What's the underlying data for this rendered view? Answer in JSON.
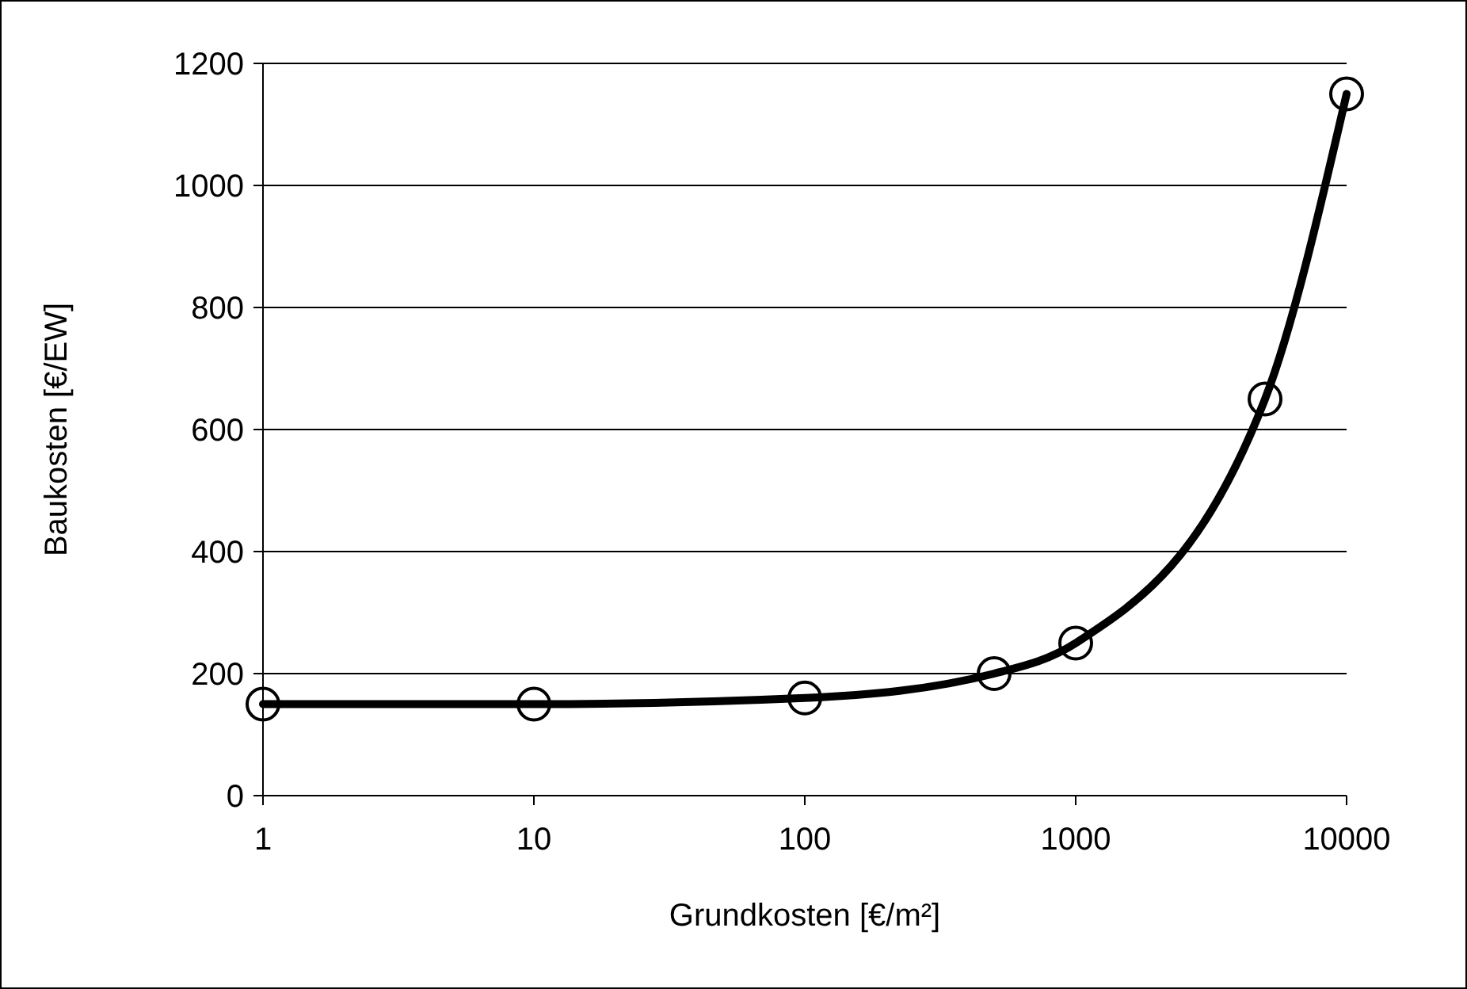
{
  "chart_data": {
    "type": "line",
    "xlabel": "Grundkosten [€/m²]",
    "ylabel": "Baukosten [€/EW]",
    "log": "x",
    "x": [
      1,
      10,
      100,
      500,
      1000,
      5000,
      10000
    ],
    "series": [
      {
        "color": "#000000",
        "values": [
          150,
          150,
          160,
          200,
          250,
          650,
          1150
        ]
      }
    ],
    "xlim": [
      1,
      10000
    ],
    "xticks": [
      1,
      10,
      100,
      1000,
      10000
    ],
    "ylim": [
      0,
      1200
    ],
    "yticks": [
      0,
      200,
      400,
      600,
      800,
      1000,
      1200
    ],
    "grid": "y",
    "marker": "circle",
    "line_style": "solid"
  }
}
